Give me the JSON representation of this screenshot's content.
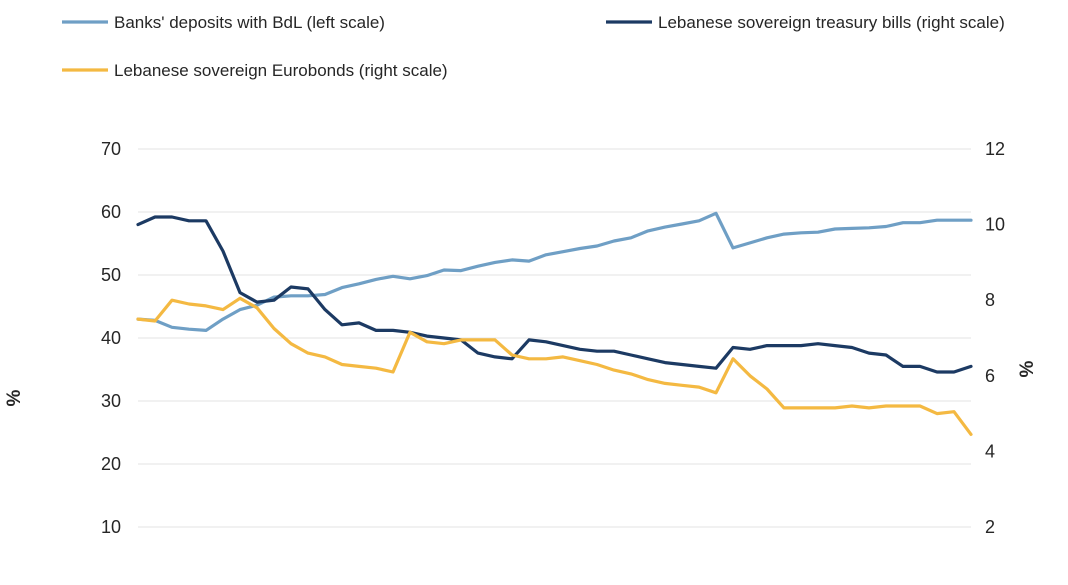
{
  "chart_data": {
    "type": "line",
    "title": "",
    "xlabel": "",
    "ylabel_left": "%",
    "ylabel_right": "%",
    "y_left": {
      "ticks": [
        10,
        20,
        30,
        40,
        50,
        60,
        70
      ],
      "range": [
        10,
        70
      ]
    },
    "y_right": {
      "ticks": [
        2,
        4,
        6,
        8,
        10,
        12
      ],
      "range": [
        2,
        12
      ]
    },
    "grid": true,
    "legend_position": "top",
    "x": [
      1,
      2,
      3,
      4,
      5,
      6,
      7,
      8,
      9,
      10,
      11,
      12,
      13,
      14,
      15,
      16,
      17,
      18,
      19,
      20,
      21,
      22,
      23,
      24,
      25,
      26,
      27,
      28,
      29,
      30,
      31,
      32,
      33,
      34,
      35,
      36,
      37,
      38,
      39,
      40,
      41,
      42,
      43,
      44,
      45,
      46,
      47,
      48,
      49,
      50
    ],
    "series": [
      {
        "name": "Banks' deposits with BdL (left scale)",
        "axis": "left",
        "color": "#6f9fc5",
        "values": [
          43.0,
          42.8,
          41.7,
          41.4,
          41.2,
          43.0,
          44.5,
          45.2,
          46.5,
          46.7,
          46.7,
          46.9,
          48.0,
          48.6,
          49.3,
          49.8,
          49.4,
          49.9,
          50.8,
          50.7,
          51.4,
          52.0,
          52.4,
          52.2,
          53.2,
          53.7,
          54.2,
          54.6,
          55.4,
          55.9,
          57.0,
          57.6,
          58.1,
          58.6,
          59.8,
          54.3,
          55.1,
          55.9,
          56.5,
          56.7,
          56.8,
          57.3,
          57.4,
          57.5,
          57.7,
          58.3,
          58.3,
          58.7,
          58.7,
          58.7
        ]
      },
      {
        "name": "Lebanese sovereign treasury bills (right scale)",
        "axis": "right",
        "color": "#1c3a63",
        "values": [
          10.0,
          10.2,
          10.2,
          10.1,
          10.1,
          9.3,
          8.2,
          7.95,
          8.0,
          8.35,
          8.3,
          7.75,
          7.35,
          7.4,
          7.2,
          7.2,
          7.15,
          7.05,
          7.0,
          6.95,
          6.6,
          6.5,
          6.45,
          6.95,
          6.9,
          6.8,
          6.7,
          6.65,
          6.65,
          6.55,
          6.45,
          6.35,
          6.3,
          6.25,
          6.2,
          6.75,
          6.7,
          6.8,
          6.8,
          6.8,
          6.85,
          6.8,
          6.75,
          6.6,
          6.55,
          6.25,
          6.25,
          6.1,
          6.1,
          6.25
        ]
      },
      {
        "name": "Lebanese sovereign Eurobonds (right scale)",
        "axis": "right",
        "color": "#f4b942",
        "values": [
          7.5,
          7.45,
          8.0,
          7.9,
          7.85,
          7.75,
          8.05,
          7.8,
          7.25,
          6.85,
          6.6,
          6.5,
          6.3,
          6.25,
          6.2,
          6.1,
          7.15,
          6.9,
          6.85,
          6.95,
          6.95,
          6.95,
          6.55,
          6.45,
          6.45,
          6.5,
          6.4,
          6.3,
          6.15,
          6.05,
          5.9,
          5.8,
          5.75,
          5.7,
          5.55,
          6.45,
          6.0,
          5.65,
          5.15,
          5.15,
          5.15,
          5.15,
          5.2,
          5.15,
          5.2,
          5.2,
          5.2,
          5.0,
          5.05,
          4.45
        ]
      }
    ]
  }
}
